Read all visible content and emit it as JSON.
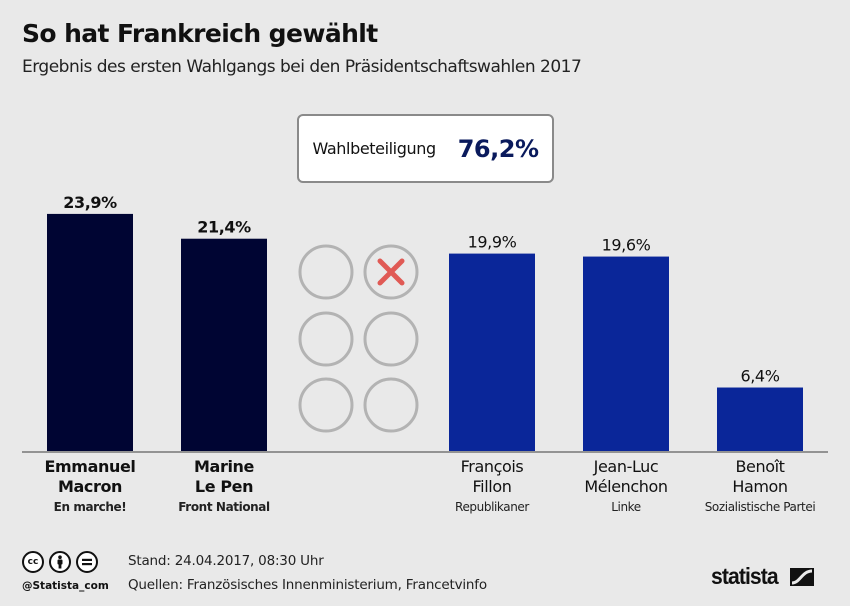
{
  "header": {
    "title": "So hat Frankreich gewählt",
    "subtitle": "Ergebnis des ersten Wahlgangs bei den Präsidentschaftswahlen 2017"
  },
  "turnout": {
    "label": "Wahlbeteiligung",
    "value": "76,2%"
  },
  "chart_data": {
    "type": "bar",
    "title": "So hat Frankreich gewählt",
    "subtitle": "Ergebnis des ersten Wahlgangs bei den Präsidentschaftswahlen 2017",
    "xlabel": "",
    "ylabel": "",
    "unit": "%",
    "ylim": [
      0,
      24
    ],
    "grid": false,
    "categories": [
      "Emmanuel Macron",
      "Marine Le Pen",
      "François Fillon",
      "Jean-Luc Mélenchon",
      "Benoît Hamon"
    ],
    "values": [
      23.9,
      21.4,
      19.9,
      19.6,
      6.4
    ],
    "value_labels": [
      "23,9%",
      "21,4%",
      "19,9%",
      "19,6%",
      "6,4%"
    ],
    "bars": [
      {
        "first": "Emmanuel",
        "last": "Macron",
        "party": "En marche!",
        "value": 23.9,
        "label": "23,9%",
        "color": "#000533",
        "bold": true,
        "qualified": true
      },
      {
        "first": "Marine",
        "last": "Le Pen",
        "party": "Front National",
        "value": 21.4,
        "label": "21,4%",
        "color": "#000533",
        "bold": true,
        "qualified": true
      },
      {
        "first": "François",
        "last": "Fillon",
        "party": "Republikaner",
        "value": 19.9,
        "label": "19,9%",
        "color": "#0a2699",
        "bold": false,
        "qualified": false
      },
      {
        "first": "Jean-Luc",
        "last": "Mélenchon",
        "party": "Linke",
        "value": 19.6,
        "label": "19,6%",
        "color": "#0a2699",
        "bold": false,
        "qualified": false
      },
      {
        "first": "Benoît",
        "last": "Hamon",
        "party": "Sozialistische Partei",
        "value": 6.4,
        "label": "6,4%",
        "color": "#0a2699",
        "bold": false,
        "qualified": false
      }
    ],
    "annotation": "ballot-circles with one red cross",
    "ballot_marker_color": "#e05a55",
    "ballot_circle_color": "#b3b3b3"
  },
  "footer": {
    "stand": "Stand: 24.04.2017, 08:30 Uhr",
    "sources": "Quellen: Französisches Innenministerium, Francetvinfo",
    "handle": "@Statista_com",
    "cc_icons": [
      "cc",
      "by",
      "nd"
    ],
    "brand": "statista"
  }
}
